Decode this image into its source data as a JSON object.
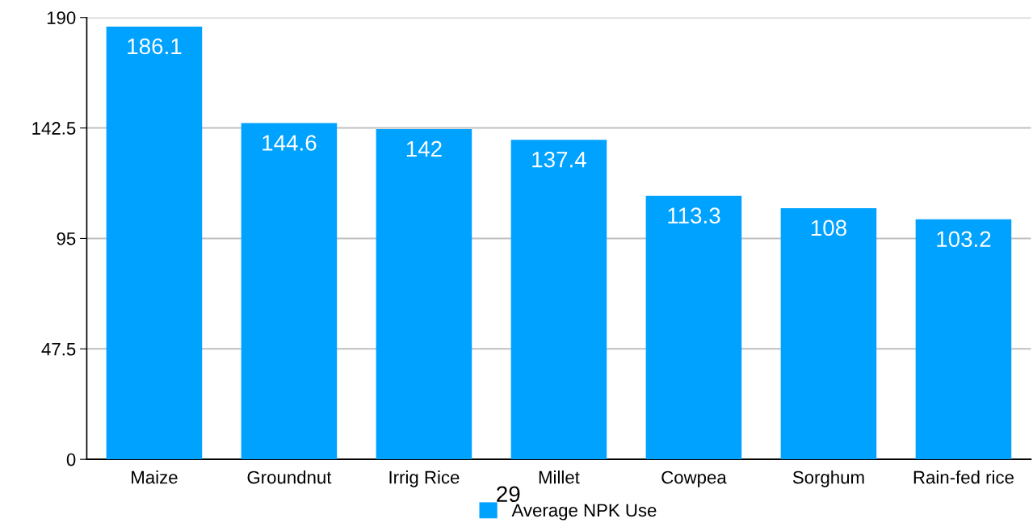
{
  "chart_data": {
    "type": "bar",
    "categories": [
      "Maize",
      "Groundnut",
      "Irrig Rice",
      "Millet",
      "Cowpea",
      "Sorghum",
      "Rain-fed rice"
    ],
    "series": [
      {
        "name": "Average NPK Use",
        "color": "#00a2ff",
        "values": [
          186.1,
          144.6,
          142,
          137.4,
          113.3,
          108,
          103.2
        ]
      }
    ],
    "ylim": [
      0,
      190
    ],
    "yticks": [
      0,
      47.5,
      95,
      142.5,
      190
    ],
    "grid": "y",
    "legend": "bottom",
    "data_labels": true,
    "annotations": [
      "29"
    ]
  }
}
